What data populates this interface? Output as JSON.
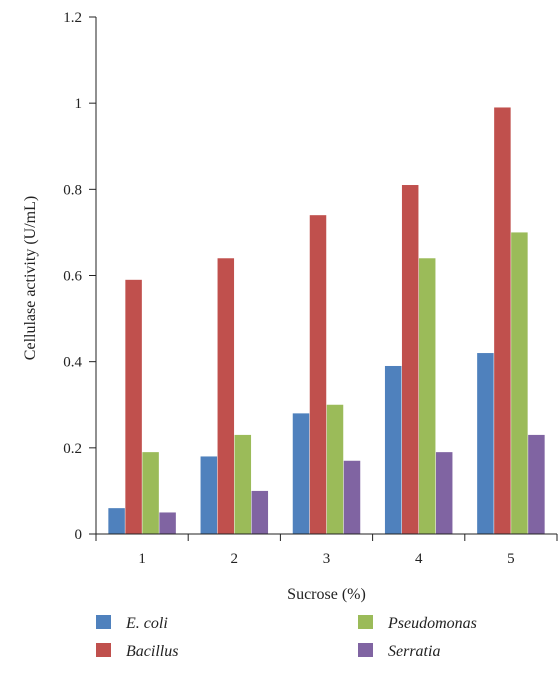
{
  "chart_data": {
    "type": "bar",
    "title": "",
    "xlabel": "Sucrose (%)",
    "ylabel": "Cellulase activity  (U/mL)",
    "categories": [
      "1",
      "2",
      "3",
      "4",
      "5"
    ],
    "ylim": [
      0,
      1.2
    ],
    "yticks": [
      "0",
      "0.2",
      "0.4",
      "0.6",
      "0.8",
      "1",
      "1.2"
    ],
    "grid": false,
    "legend_position": "bottom",
    "series": [
      {
        "name": "E. coli",
        "color": "#4f81bd",
        "values": [
          0.06,
          0.18,
          0.28,
          0.39,
          0.42
        ]
      },
      {
        "name": "Bacillus",
        "color": "#c0504d",
        "values": [
          0.59,
          0.64,
          0.74,
          0.81,
          0.99
        ]
      },
      {
        "name": "Pseudomonas",
        "color": "#9bbb59",
        "values": [
          0.19,
          0.23,
          0.3,
          0.64,
          0.7
        ]
      },
      {
        "name": "Serratia",
        "color": "#8064a2",
        "values": [
          0.05,
          0.1,
          0.17,
          0.19,
          0.23
        ]
      }
    ]
  }
}
